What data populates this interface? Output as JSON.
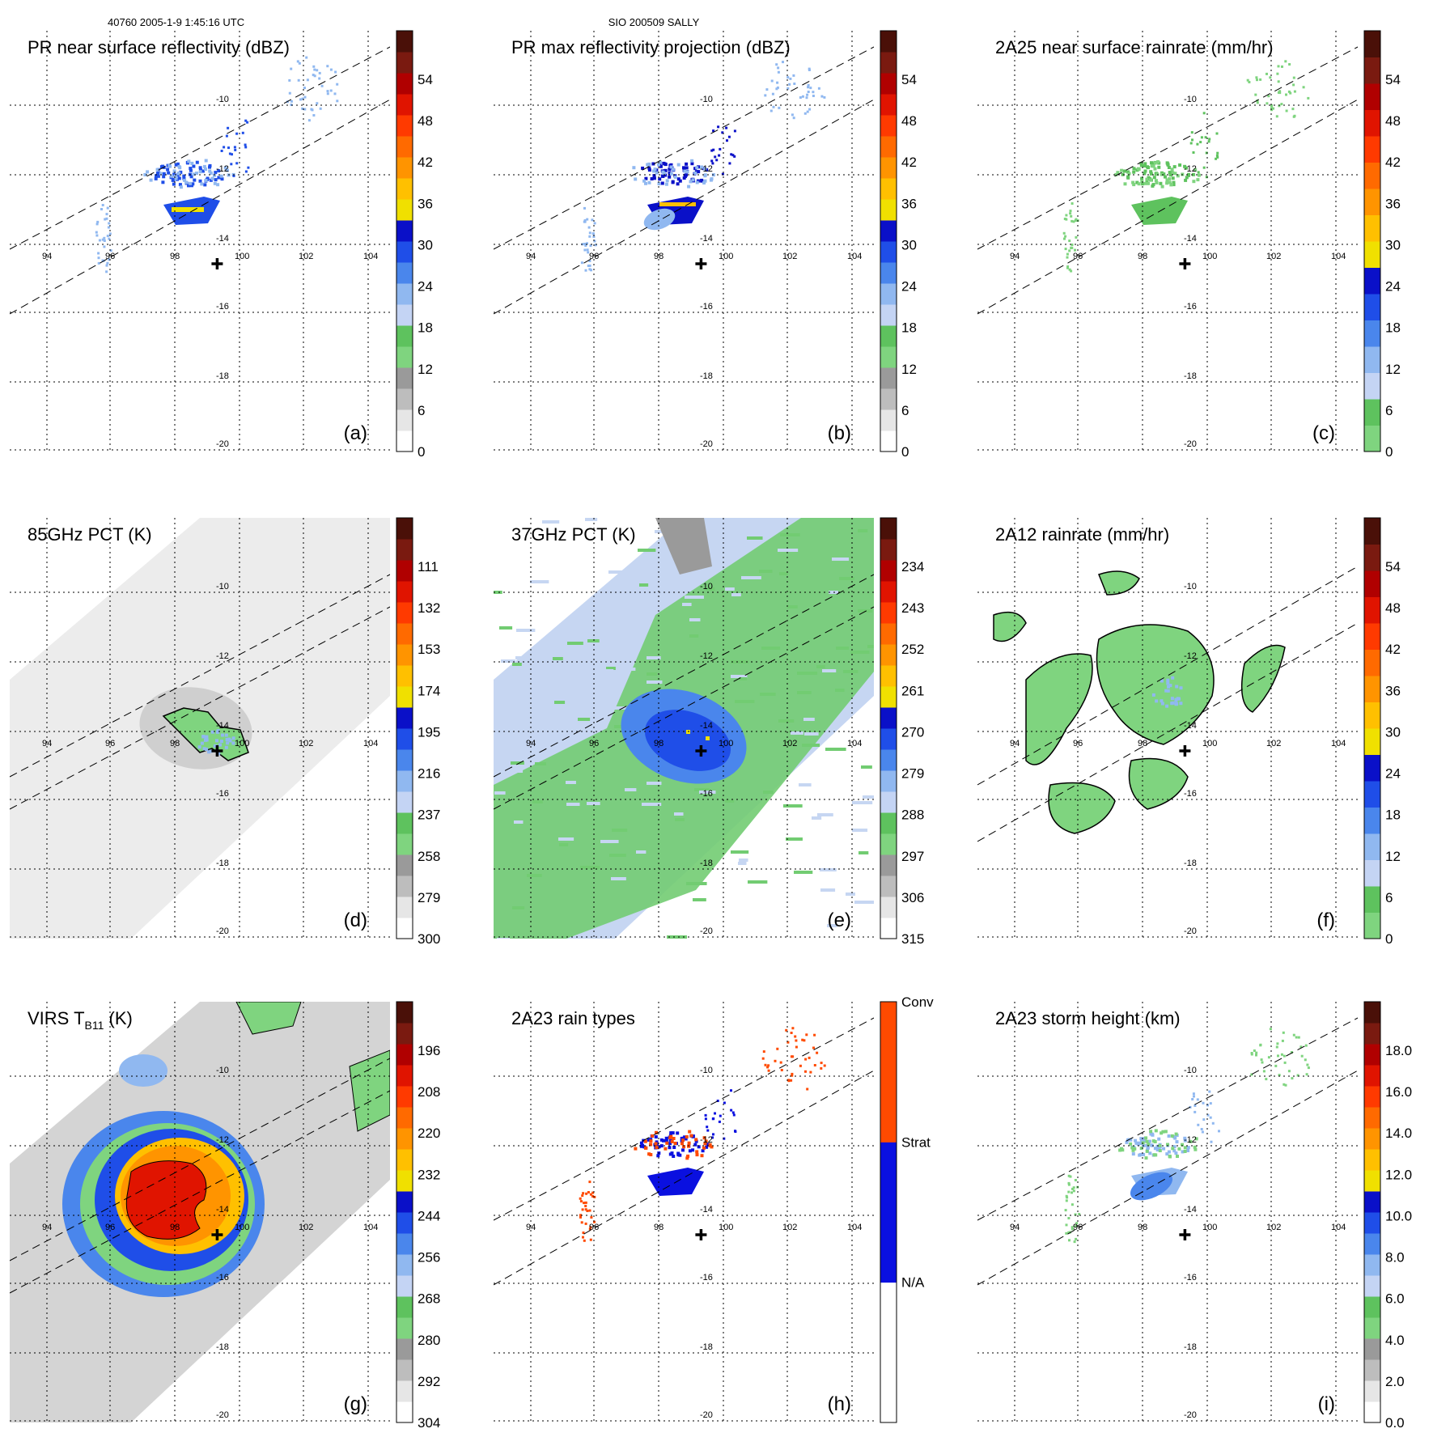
{
  "header": {
    "left": "40760 2005-1-9 1:45:16 UTC",
    "center": "SIO 200509 SALLY"
  },
  "chart_data": {
    "type": "heatmap",
    "lon_ticks": [
      "94",
      "96",
      "98",
      "100",
      "102",
      "104"
    ],
    "lat_ticks": [
      "-10",
      "-12",
      "-14",
      "-16",
      "-18",
      "-20"
    ],
    "storm_center": {
      "lon": 99.3,
      "lat": -14.6
    },
    "panels": [
      {
        "id": "a",
        "title": "PR near surface reflectivity (dBZ)",
        "label": "(a)",
        "swath": "pr",
        "colorbar_ticks": [
          "54",
          "48",
          "42",
          "36",
          "30",
          "24",
          "18",
          "12",
          "6",
          "0"
        ],
        "colors": [
          "#ffffff",
          "#e6e6e6",
          "#bdbdbd",
          "#9a9a9a",
          "#7fd47f",
          "#5ec25e",
          "#c4d4f4",
          "#90b8f0",
          "#4a86ec",
          "#1f4ee8",
          "#0a10c8",
          "#f0e000",
          "#ffc000",
          "#ff9400",
          "#ff6a00",
          "#ff3a00",
          "#e01400",
          "#b00000",
          "#7a1a10",
          "#4a1008"
        ]
      },
      {
        "id": "b",
        "title": "PR max reflectivity projection (dBZ)",
        "label": "(b)",
        "swath": "pr",
        "colorbar_ticks": [
          "54",
          "48",
          "42",
          "36",
          "30",
          "24",
          "18",
          "12",
          "6",
          "0"
        ],
        "colors": [
          "#ffffff",
          "#e6e6e6",
          "#bdbdbd",
          "#9a9a9a",
          "#7fd47f",
          "#5ec25e",
          "#c4d4f4",
          "#90b8f0",
          "#4a86ec",
          "#1f4ee8",
          "#0a10c8",
          "#f0e000",
          "#ffc000",
          "#ff9400",
          "#ff6a00",
          "#ff3a00",
          "#e01400",
          "#b00000",
          "#7a1a10",
          "#4a1008"
        ]
      },
      {
        "id": "c",
        "title": "2A25 near surface rainrate (mm/hr)",
        "label": "(c)",
        "swath": "pr",
        "colorbar_ticks": [
          "54",
          "48",
          "42",
          "36",
          "30",
          "24",
          "18",
          "12",
          "6",
          "0"
        ],
        "colors": [
          "#7fd47f",
          "#5ec25e",
          "#c4d4f4",
          "#90b8f0",
          "#4a86ec",
          "#1f4ee8",
          "#0a10c8",
          "#f0e000",
          "#ffc000",
          "#ff9400",
          "#ff6a00",
          "#ff3a00",
          "#e01400",
          "#b00000",
          "#7a1a10",
          "#4a1008"
        ]
      },
      {
        "id": "d",
        "title": "85GHz PCT (K)",
        "label": "(d)",
        "swath": "tmi",
        "colorbar_ticks": [
          "111",
          "132",
          "153",
          "174",
          "195",
          "216",
          "237",
          "258",
          "279",
          "300"
        ],
        "colors": [
          "#ffffff",
          "#e6e6e6",
          "#bdbdbd",
          "#9a9a9a",
          "#7fd47f",
          "#5ec25e",
          "#c4d4f4",
          "#90b8f0",
          "#4a86ec",
          "#1f4ee8",
          "#0a10c8",
          "#f0e000",
          "#ffc000",
          "#ff9400",
          "#ff6a00",
          "#ff3a00",
          "#e01400",
          "#b00000",
          "#7a1a10",
          "#4a1008"
        ]
      },
      {
        "id": "e",
        "title": "37GHz PCT (K)",
        "label": "(e)",
        "swath": "tmi",
        "colorbar_ticks": [
          "234",
          "243",
          "252",
          "261",
          "270",
          "279",
          "288",
          "297",
          "306",
          "315"
        ],
        "colors": [
          "#ffffff",
          "#e6e6e6",
          "#bdbdbd",
          "#9a9a9a",
          "#7fd47f",
          "#5ec25e",
          "#c4d4f4",
          "#90b8f0",
          "#4a86ec",
          "#1f4ee8",
          "#0a10c8",
          "#f0e000",
          "#ffc000",
          "#ff9400",
          "#ff6a00",
          "#ff3a00",
          "#e01400",
          "#b00000",
          "#7a1a10",
          "#4a1008"
        ]
      },
      {
        "id": "f",
        "title": "2A12 rainrate (mm/hr)",
        "label": "(f)",
        "swath": "none",
        "colorbar_ticks": [
          "54",
          "48",
          "42",
          "36",
          "30",
          "24",
          "18",
          "12",
          "6",
          "0"
        ],
        "colors": [
          "#7fd47f",
          "#5ec25e",
          "#c4d4f4",
          "#90b8f0",
          "#4a86ec",
          "#1f4ee8",
          "#0a10c8",
          "#f0e000",
          "#ffc000",
          "#ff9400",
          "#ff6a00",
          "#ff3a00",
          "#e01400",
          "#b00000",
          "#7a1a10",
          "#4a1008"
        ]
      },
      {
        "id": "g",
        "title": "VIRS T",
        "title_sub": "B11",
        "title_tail": " (K)",
        "label": "(g)",
        "swath": "tmi",
        "colorbar_ticks": [
          "196",
          "208",
          "220",
          "232",
          "244",
          "256",
          "268",
          "280",
          "292",
          "304"
        ],
        "colors": [
          "#ffffff",
          "#e6e6e6",
          "#bdbdbd",
          "#9a9a9a",
          "#7fd47f",
          "#5ec25e",
          "#c4d4f4",
          "#90b8f0",
          "#4a86ec",
          "#1f4ee8",
          "#0a10c8",
          "#f0e000",
          "#ffc000",
          "#ff9400",
          "#ff6a00",
          "#ff3a00",
          "#e01400",
          "#b00000",
          "#7a1a10",
          "#4a1008"
        ]
      },
      {
        "id": "h",
        "title": "2A23 rain types",
        "label": "(h)",
        "swath": "pr",
        "colorbar_ticks": [
          "Conv",
          "Strat",
          "N/A"
        ],
        "colors": [
          "#ffffff",
          "#0a10e0",
          "#ff4a00"
        ]
      },
      {
        "id": "i",
        "title": "2A23 storm height (km)",
        "label": "(i)",
        "swath": "pr",
        "colorbar_ticks": [
          "18.0",
          "16.0",
          "14.0",
          "12.0",
          "10.0",
          "8.0",
          "6.0",
          "4.0",
          "2.0",
          "0.0"
        ],
        "colors": [
          "#ffffff",
          "#e6e6e6",
          "#bdbdbd",
          "#9a9a9a",
          "#7fd47f",
          "#5ec25e",
          "#c4d4f4",
          "#90b8f0",
          "#4a86ec",
          "#1f4ee8",
          "#0a10c8",
          "#f0e000",
          "#ffc000",
          "#ff9400",
          "#ff6a00",
          "#ff3a00",
          "#e01400",
          "#b00000",
          "#7a1a10",
          "#4a1008"
        ]
      }
    ]
  }
}
